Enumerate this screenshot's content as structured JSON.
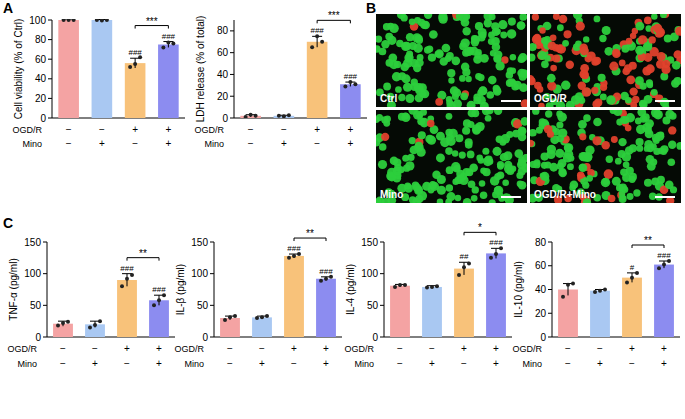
{
  "panel_labels": [
    "A",
    "B",
    "C"
  ],
  "micrographs": [
    {
      "label": "Ctrl"
    },
    {
      "label": "OGD/R"
    },
    {
      "label": "Mino"
    },
    {
      "label": "OGD/R+Mino"
    }
  ],
  "chart_data": [
    {
      "type": "bar",
      "ylabel": "Cell viability (% of Ctrl)",
      "categories": [
        null,
        null,
        null,
        null
      ],
      "values": [
        100,
        100,
        56,
        75
      ],
      "errors": [
        1,
        0.5,
        5,
        3
      ],
      "points": [
        [
          100,
          100,
          100
        ],
        [
          100,
          99.5,
          100
        ],
        [
          52,
          55,
          62
        ],
        [
          72,
          77,
          76
        ]
      ],
      "colors": [
        "#f4a3a3",
        "#a9c8f2",
        "#f8c27a",
        "#8c8cf0"
      ],
      "ylim": [
        0,
        100
      ],
      "yticks": [
        0,
        20,
        40,
        60,
        80,
        100
      ],
      "annotations": [
        null,
        null,
        "###",
        "###"
      ],
      "bracket": {
        "categories": [
          2,
          3
        ],
        "label": "***"
      },
      "conditions": [
        {
          "label": "OGD/R",
          "values": [
            "−",
            "−",
            "+",
            "+"
          ]
        },
        {
          "label": "Mino",
          "values": [
            "−",
            "+",
            "−",
            "+"
          ]
        }
      ]
    },
    {
      "type": "bar",
      "ylabel": "LDH release (% of total)",
      "categories": [
        null,
        null,
        null,
        null
      ],
      "values": [
        2,
        2,
        70,
        31
      ],
      "errors": [
        1,
        0.5,
        5,
        2
      ],
      "points": [
        [
          1,
          3,
          2
        ],
        [
          2,
          1.5,
          2.5
        ],
        [
          65,
          75,
          70
        ],
        [
          29,
          33,
          31
        ]
      ],
      "colors": [
        "#f4a3a3",
        "#a9c8f2",
        "#f8c27a",
        "#8c8cf0"
      ],
      "ylim": [
        0,
        90
      ],
      "yticks": [
        0,
        20,
        40,
        60,
        80
      ],
      "annotations": [
        null,
        null,
        "###",
        "###"
      ],
      "bracket": {
        "categories": [
          2,
          3
        ],
        "label": "***"
      },
      "conditions": [
        {
          "label": "OGD/R",
          "values": [
            "−",
            "−",
            "+",
            "+"
          ]
        },
        {
          "label": "Mino",
          "values": [
            "−",
            "+",
            "−",
            "+"
          ]
        }
      ]
    },
    {
      "type": "bar",
      "ylabel": "TNF-α (pg/ml)",
      "categories": [
        null,
        null,
        null,
        null
      ],
      "values": [
        21,
        20,
        90,
        58
      ],
      "errors": [
        4,
        5,
        10,
        8
      ],
      "points": [
        [
          18,
          22,
          24
        ],
        [
          15,
          19,
          25
        ],
        [
          80,
          92,
          98
        ],
        [
          50,
          58,
          66
        ]
      ],
      "colors": [
        "#f4a3a3",
        "#a9c8f2",
        "#f8c27a",
        "#8c8cf0"
      ],
      "ylim": [
        0,
        150
      ],
      "yticks": [
        0,
        50,
        100,
        150
      ],
      "annotations": [
        null,
        null,
        "###",
        "###"
      ],
      "bracket": {
        "categories": [
          2,
          3
        ],
        "label": "**"
      },
      "conditions": [
        {
          "label": "OGD/R",
          "values": [
            "−",
            "−",
            "+",
            "+"
          ]
        },
        {
          "label": "Mino",
          "values": [
            "−",
            "+",
            "−",
            "+"
          ]
        }
      ]
    },
    {
      "type": "bar",
      "ylabel": "IL-β (pg/ml)",
      "categories": [
        null,
        null,
        null,
        null
      ],
      "values": [
        30,
        31,
        128,
        92
      ],
      "errors": [
        3,
        2,
        3,
        3
      ],
      "points": [
        [
          27,
          31,
          33
        ],
        [
          30,
          31,
          33
        ],
        [
          125,
          128,
          131
        ],
        [
          89,
          92,
          95
        ]
      ],
      "colors": [
        "#f4a3a3",
        "#a9c8f2",
        "#f8c27a",
        "#8c8cf0"
      ],
      "ylim": [
        0,
        150
      ],
      "yticks": [
        0,
        50,
        100,
        150
      ],
      "annotations": [
        null,
        null,
        "###",
        "###"
      ],
      "bracket": {
        "categories": [
          2,
          3
        ],
        "label": "**"
      },
      "conditions": [
        {
          "label": "OGD/R",
          "values": [
            "−",
            "−",
            "+",
            "+"
          ]
        },
        {
          "label": "Mino",
          "values": [
            "−",
            "+",
            "−",
            "+"
          ]
        }
      ]
    },
    {
      "type": "bar",
      "ylabel": "IL-4 (pg/ml)",
      "categories": [
        null,
        null,
        null,
        null
      ],
      "values": [
        81,
        79,
        108,
        132
      ],
      "errors": [
        2,
        2,
        10,
        8
      ],
      "points": [
        [
          79,
          82,
          82
        ],
        [
          78,
          79,
          80
        ],
        [
          98,
          110,
          116
        ],
        [
          125,
          131,
          140
        ]
      ],
      "colors": [
        "#f4a3a3",
        "#a9c8f2",
        "#f8c27a",
        "#8c8cf0"
      ],
      "ylim": [
        0,
        150
      ],
      "yticks": [
        0,
        50,
        100,
        150
      ],
      "annotations": [
        null,
        null,
        "##",
        "###"
      ],
      "bracket": {
        "categories": [
          2,
          3
        ],
        "label": "*"
      },
      "conditions": [
        {
          "label": "OGD/R",
          "values": [
            "−",
            "−",
            "+",
            "+"
          ]
        },
        {
          "label": "Mino",
          "values": [
            "−",
            "+",
            "−",
            "+"
          ]
        }
      ]
    },
    {
      "type": "bar",
      "ylabel": "IL-10 (pg/ml)",
      "categories": [
        null,
        null,
        null,
        null
      ],
      "values": [
        40,
        39,
        50,
        61
      ],
      "errors": [
        5,
        1,
        4,
        3
      ],
      "points": [
        [
          34,
          44,
          45
        ],
        [
          38,
          39,
          40
        ],
        [
          46,
          50,
          54
        ],
        [
          58,
          61,
          64
        ]
      ],
      "colors": [
        "#f4a3a3",
        "#a9c8f2",
        "#f8c27a",
        "#8c8cf0"
      ],
      "ylim": [
        0,
        80
      ],
      "yticks": [
        0,
        20,
        40,
        60,
        80
      ],
      "annotations": [
        null,
        null,
        "#",
        "###"
      ],
      "bracket": {
        "categories": [
          2,
          3
        ],
        "label": "**"
      },
      "conditions": [
        {
          "label": "OGD/R",
          "values": [
            "−",
            "−",
            "+",
            "+"
          ]
        },
        {
          "label": "Mino",
          "values": [
            "−",
            "+",
            "−",
            "+"
          ]
        }
      ]
    }
  ]
}
